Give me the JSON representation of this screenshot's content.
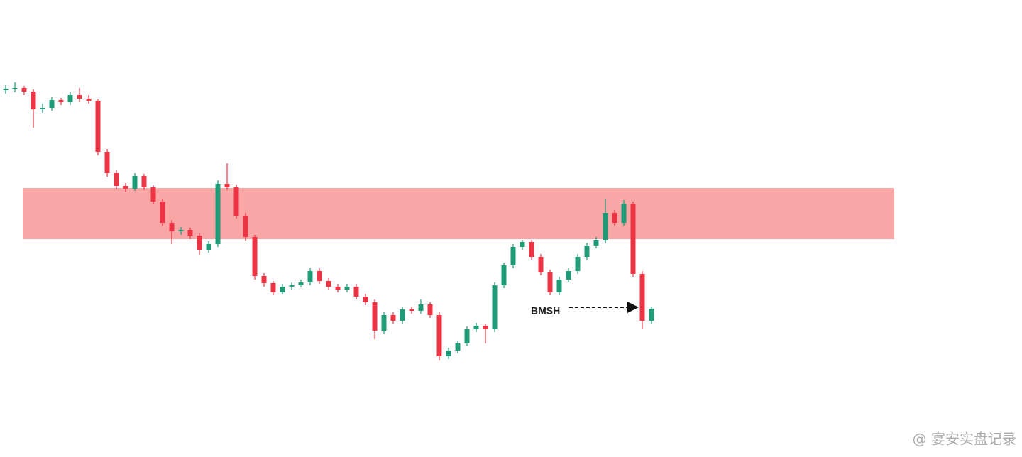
{
  "chart_data": {
    "type": "candlestick",
    "ylim": [
      0,
      644
    ],
    "up_color": "#1f9b78",
    "down_color": "#ec3444",
    "zone": {
      "from": 307,
      "to": 379,
      "color": "#f9a6a6"
    },
    "annotation": {
      "text": "BMSH",
      "level": 211
    },
    "watermark": "@ 宴安实盘记录",
    "candles": [
      [
        517,
        524,
        512,
        519
      ],
      [
        519,
        528,
        514,
        520
      ],
      [
        520,
        523,
        510,
        515
      ],
      [
        515,
        518,
        464,
        490
      ],
      [
        490,
        498,
        485,
        492
      ],
      [
        492,
        507,
        488,
        503
      ],
      [
        503,
        506,
        496,
        500
      ],
      [
        500,
        514,
        496,
        510
      ],
      [
        510,
        520,
        500,
        505
      ],
      [
        505,
        510,
        498,
        502
      ],
      [
        502,
        505,
        425,
        430
      ],
      [
        430,
        434,
        395,
        400
      ],
      [
        400,
        404,
        377,
        382
      ],
      [
        382,
        386,
        373,
        378
      ],
      [
        378,
        400,
        375,
        396
      ],
      [
        396,
        399,
        376,
        380
      ],
      [
        380,
        383,
        356,
        360
      ],
      [
        360,
        364,
        325,
        330
      ],
      [
        330,
        334,
        300,
        318
      ],
      [
        318,
        324,
        313,
        320
      ],
      [
        320,
        323,
        307,
        312
      ],
      [
        312,
        315,
        285,
        292
      ],
      [
        292,
        304,
        288,
        300
      ],
      [
        300,
        390,
        296,
        385
      ],
      [
        385,
        414,
        376,
        380
      ],
      [
        380,
        384,
        336,
        340
      ],
      [
        340,
        344,
        305,
        310
      ],
      [
        310,
        313,
        250,
        255
      ],
      [
        255,
        259,
        240,
        245
      ],
      [
        245,
        248,
        228,
        232
      ],
      [
        232,
        244,
        229,
        240
      ],
      [
        240,
        246,
        236,
        242
      ],
      [
        242,
        250,
        239,
        246
      ],
      [
        246,
        266,
        242,
        262
      ],
      [
        262,
        266,
        244,
        248
      ],
      [
        248,
        252,
        236,
        240
      ],
      [
        240,
        244,
        232,
        236
      ],
      [
        236,
        244,
        232,
        240
      ],
      [
        240,
        244,
        222,
        226
      ],
      [
        226,
        230,
        214,
        218
      ],
      [
        218,
        222,
        166,
        178
      ],
      [
        178,
        204,
        174,
        200
      ],
      [
        200,
        204,
        188,
        192
      ],
      [
        192,
        212,
        188,
        208
      ],
      [
        208,
        212,
        202,
        206
      ],
      [
        206,
        222,
        202,
        215
      ],
      [
        215,
        218,
        196,
        200
      ],
      [
        200,
        204,
        136,
        142
      ],
      [
        142,
        154,
        138,
        150
      ],
      [
        150,
        164,
        146,
        160
      ],
      [
        160,
        184,
        156,
        180
      ],
      [
        180,
        189,
        176,
        185
      ],
      [
        185,
        188,
        160,
        180
      ],
      [
        180,
        246,
        176,
        242
      ],
      [
        242,
        274,
        238,
        270
      ],
      [
        270,
        300,
        266,
        296
      ],
      [
        296,
        306,
        292,
        303
      ],
      [
        303,
        306,
        278,
        282
      ],
      [
        282,
        286,
        256,
        260
      ],
      [
        260,
        264,
        228,
        232
      ],
      [
        232,
        254,
        228,
        250
      ],
      [
        250,
        266,
        246,
        262
      ],
      [
        262,
        286,
        258,
        282
      ],
      [
        282,
        302,
        278,
        298
      ],
      [
        298,
        310,
        294,
        306
      ],
      [
        306,
        364,
        302,
        344
      ],
      [
        344,
        348,
        326,
        330
      ],
      [
        330,
        362,
        326,
        357
      ],
      [
        357,
        360,
        254,
        258
      ],
      [
        258,
        262,
        180,
        192
      ],
      [
        192,
        212,
        188,
        209
      ]
    ]
  }
}
